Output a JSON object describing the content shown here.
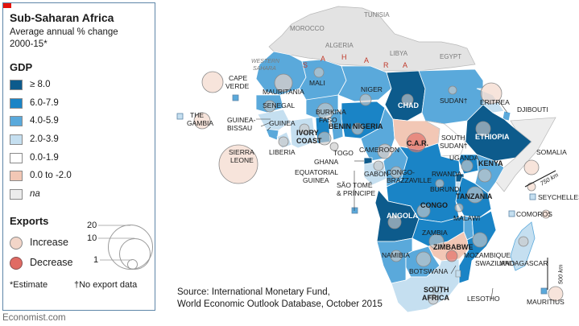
{
  "title": "Sub-Saharan Africa",
  "subtitle_line1": "Average annual % change",
  "subtitle_line2": "2000-15*",
  "gdp_heading": "GDP",
  "gdp_legend": [
    {
      "label": "≥ 8.0",
      "color": "#0d5b8c"
    },
    {
      "label": "6.0-7.9",
      "color": "#1a84c6"
    },
    {
      "label": "4.0-5.9",
      "color": "#5aa9db"
    },
    {
      "label": "2.0-3.9",
      "color": "#c5dff0"
    },
    {
      "label": "0.0-1.9",
      "color": "#ffffff"
    },
    {
      "label": "0.0 to -2.0",
      "color": "#f2c7b5"
    },
    {
      "label": "na",
      "color": "#ececec"
    }
  ],
  "exports_heading": "Exports",
  "exports_increase": "Increase",
  "exports_decrease": "Decrease",
  "exports_increase_color": "#f2d5c8",
  "exports_decrease_color": "#e06b64",
  "size_labels": [
    "20",
    "10",
    "1"
  ],
  "footnote_estimate": "*Estimate",
  "footnote_dagger": "†No export data",
  "source_line1": "Source: International Monetary Fund,",
  "source_line2": "World Economic Outlook Database, October 2015",
  "credit": "Economist.com",
  "scale_750": "750 km",
  "scale_500": "500 km",
  "country_labels": {
    "tunisia": "TUNISIA",
    "morocco": "MOROCCO",
    "algeria": "ALGERIA",
    "libya": "LIBYA",
    "egypt": "EGYPT",
    "western_sahara_1": "WESTERN",
    "western_sahara_2": "SAHARA",
    "sahara_s": "S",
    "sahara_a1": "A",
    "sahara_h": "H",
    "sahara_a2": "A",
    "sahara_r": "R",
    "sahara_a3": "A",
    "cape_verde_1": "CAPE",
    "cape_verde_2": "VERDE",
    "mauritania": "MAURITANIA",
    "mali": "MALI",
    "niger": "NIGER",
    "chad": "CHAD",
    "sudan": "SUDAN†",
    "eritrea": "ERITREA",
    "djibouti": "DJIBOUTI",
    "senegal": "SENEGAL",
    "the_gambia_1": "THE",
    "the_gambia_2": "GAMBIA",
    "guinea_bissau_1": "GUINEA-",
    "guinea_bissau_2": "BISSAU",
    "guinea": "GUINEA",
    "burkina_1": "BURKINA",
    "burkina_2": "FASO",
    "benin": "BENIN",
    "nigeria": "NIGERIA",
    "ivory_coast_1": "IVORY",
    "ivory_coast_2": "COAST",
    "liberia": "LIBERIA",
    "sierra_leone_1": "SIERRA",
    "sierra_leone_2": "LEONE",
    "togo": "TOGO",
    "ghana": "GHANA",
    "cameroon": "CAMEROON",
    "car": "C.A.R.",
    "south_sudan_1": "SOUTH",
    "south_sudan_2": "SUDAN†",
    "ethiopia": "ETHIOPIA",
    "somalia": "SOMALIA",
    "uganda": "UGANDA",
    "kenya": "KENYA",
    "equatorial_guinea_1": "EQUATORIAL",
    "equatorial_guinea_2": "GUINEA",
    "gabon": "GABON",
    "congo_brazzaville_1": "CONGO-",
    "congo_brazzaville_2": "BRAZZAVILLE",
    "sao_tome_1": "SÃO TOMÉ",
    "sao_tome_2": "& PRÍNCIPE",
    "rwanda": "RWANDA",
    "burundi": "BURUNDI",
    "congo": "CONGO",
    "tanzania": "TANZANIA",
    "seychelles": "SEYCHELLES",
    "comoros": "COMOROS",
    "angola": "ANGOLA",
    "malawi": "MALAWI",
    "zambia": "ZAMBIA",
    "zimbabwe": "ZIMBABWE",
    "mozambique": "MOZAMBIQUE",
    "madagascar": "MADAGASCAR",
    "namibia": "NAMIBIA",
    "botswana": "BOTSWANA",
    "swaziland": "SWAZILAND",
    "south_africa_1": "SOUTH",
    "south_africa_2": "AFRICA",
    "lesotho": "LESOTHO",
    "mauritius": "MAURITIUS"
  }
}
